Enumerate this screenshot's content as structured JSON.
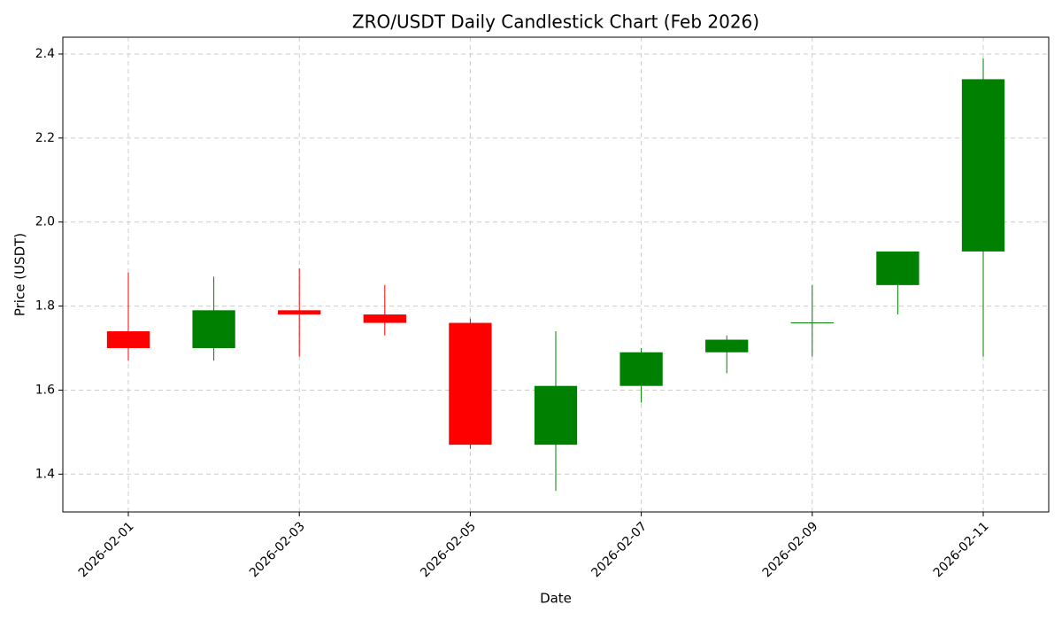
{
  "chart_data": {
    "type": "candlestick",
    "title": "ZRO/USDT Daily Candlestick Chart (Feb 2026)",
    "xlabel": "Date",
    "ylabel": "Price (USDT)",
    "x": [
      "2026-02-01",
      "2026-02-02",
      "2026-02-03",
      "2026-02-04",
      "2026-02-05",
      "2026-02-06",
      "2026-02-07",
      "2026-02-08",
      "2026-02-09",
      "2026-02-10",
      "2026-02-11"
    ],
    "open": [
      1.74,
      1.7,
      1.79,
      1.78,
      1.76,
      1.47,
      1.61,
      1.69,
      1.76,
      1.85,
      1.93
    ],
    "high": [
      1.88,
      1.87,
      1.89,
      1.85,
      1.77,
      1.74,
      1.7,
      1.73,
      1.85,
      1.93,
      2.39
    ],
    "low": [
      1.67,
      1.67,
      1.68,
      1.73,
      1.46,
      1.36,
      1.57,
      1.64,
      1.68,
      1.78,
      1.68
    ],
    "close": [
      1.7,
      1.79,
      1.78,
      1.76,
      1.47,
      1.61,
      1.69,
      1.72,
      1.76,
      1.93,
      2.34
    ],
    "up_color": "#008000",
    "down_color": "#ff0000",
    "ylim": [
      1.31,
      2.44
    ],
    "yticks": [
      1.4,
      1.6,
      1.8,
      {
        "value": 2,
        "label": "2.0"
      },
      2.2,
      2.4
    ],
    "xticks": [
      "2026-02-01",
      "2026-02-03",
      "2026-02-05",
      "2026-02-07",
      "2026-02-09",
      "2026-02-11"
    ],
    "grid": true
  }
}
